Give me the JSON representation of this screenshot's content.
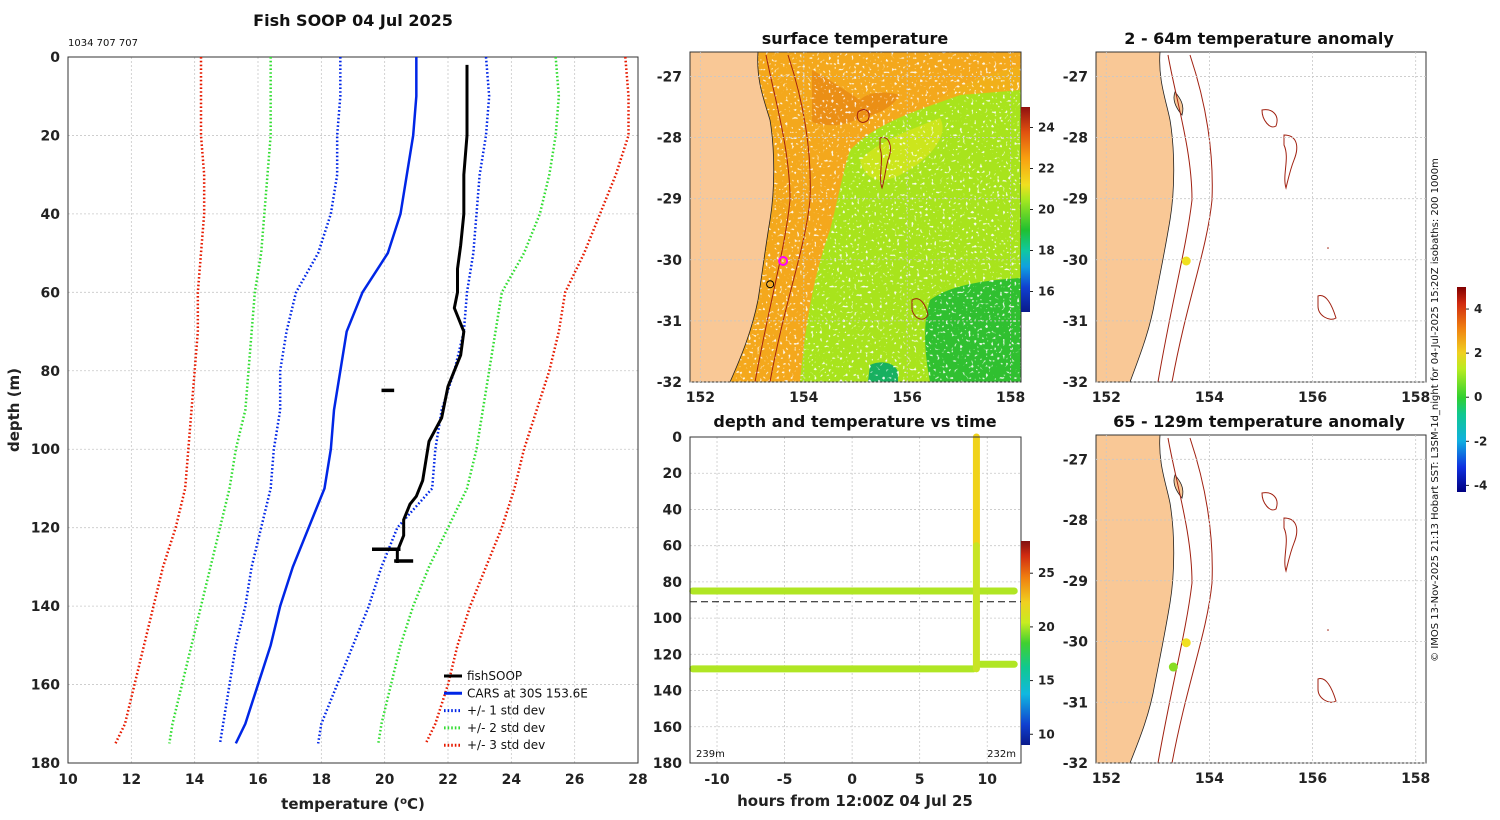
{
  "colors": {
    "fishsoop": "#000000",
    "cars": "#0026e6",
    "std1": "#0026e6",
    "std2": "#33dd33",
    "std3": "#e61a00",
    "land": "#f9c896",
    "isobath": "#a02010",
    "magenta": "#ff00ff",
    "yellow_dot": "#f0e020",
    "green_dot": "#88dd22"
  },
  "chart_data": [
    {
      "id": "profile",
      "type": "line",
      "title": "Fish SOOP 04 Jul 2025",
      "subtitle": "1034 707 707",
      "xlabel": "temperature (",
      "xlabel_unit": "o",
      "xlabel_end": "C)",
      "ylabel": "depth (m)",
      "xlim": [
        10,
        28
      ],
      "ylim": [
        180,
        0
      ],
      "xticks": [
        "10",
        "12",
        "14",
        "16",
        "18",
        "20",
        "22",
        "24",
        "26",
        "28"
      ],
      "yticks": [
        "0",
        "20",
        "40",
        "60",
        "80",
        "100",
        "120",
        "140",
        "160",
        "180"
      ],
      "depth": [
        0,
        10,
        20,
        30,
        40,
        50,
        60,
        70,
        80,
        90,
        100,
        110,
        120,
        130,
        140,
        150,
        160,
        170,
        175
      ],
      "series": [
        {
          "name": "CARS at 30S 153.6E",
          "key": "cars",
          "style": "solid",
          "x": [
            21.0,
            21.0,
            20.9,
            20.7,
            20.5,
            20.1,
            19.3,
            18.8,
            18.6,
            18.4,
            18.3,
            18.1,
            17.6,
            17.1,
            16.7,
            16.4,
            16.0,
            15.6,
            15.3
          ]
        },
        {
          "name": "+/- 1 std dev",
          "key": "std1",
          "style": "dotted",
          "x": [
            23.2,
            23.3,
            23.2,
            23.0,
            22.9,
            22.8,
            22.6,
            22.5,
            22.2,
            21.8,
            21.6,
            21.5,
            20.4,
            19.9,
            19.5,
            19.0,
            18.5,
            18.0,
            17.9
          ]
        },
        {
          "name": "+/- 1 std dev (lower)",
          "key": "std1",
          "style": "dotted",
          "x": [
            18.6,
            18.6,
            18.5,
            18.5,
            18.3,
            17.9,
            17.2,
            16.9,
            16.7,
            16.7,
            16.5,
            16.4,
            16.1,
            15.8,
            15.6,
            15.3,
            15.1,
            14.9,
            14.8
          ]
        },
        {
          "name": "+/- 2 std dev",
          "key": "std2",
          "style": "dotted",
          "x": [
            25.4,
            25.5,
            25.4,
            25.2,
            24.9,
            24.4,
            23.7,
            23.5,
            23.3,
            23.1,
            22.9,
            22.6,
            22.0,
            21.4,
            20.9,
            20.5,
            20.2,
            19.9,
            19.8
          ]
        },
        {
          "name": "+/- 2 std dev (lower)",
          "key": "std2",
          "style": "dotted",
          "x": [
            16.4,
            16.4,
            16.4,
            16.3,
            16.2,
            16.1,
            15.9,
            15.8,
            15.7,
            15.6,
            15.3,
            15.1,
            14.8,
            14.5,
            14.2,
            13.9,
            13.6,
            13.3,
            13.2
          ]
        },
        {
          "name": "+/- 3 std dev",
          "key": "std3",
          "style": "dotted",
          "x": [
            27.6,
            27.7,
            27.7,
            27.3,
            26.8,
            26.3,
            25.7,
            25.5,
            25.2,
            24.8,
            24.4,
            24.1,
            23.7,
            23.2,
            22.7,
            22.3,
            22.0,
            21.6,
            21.3
          ]
        },
        {
          "name": "+/- 3 std dev (lower)",
          "key": "std3",
          "style": "dotted",
          "x": [
            14.2,
            14.2,
            14.2,
            14.3,
            14.3,
            14.2,
            14.1,
            14.1,
            14.0,
            13.9,
            13.8,
            13.7,
            13.4,
            13.0,
            12.7,
            12.4,
            12.1,
            11.8,
            11.5
          ]
        }
      ],
      "fishsoop": {
        "name": "fishSOOP",
        "t": [
          22.6,
          22.6,
          22.6,
          22.5,
          22.5,
          22.4,
          22.3,
          22.3,
          22.2,
          22.5,
          22.4,
          22.0,
          21.8,
          21.4,
          21.3,
          21.2,
          21.0,
          20.8,
          20.6,
          20.6,
          20.4,
          20.4
        ],
        "z": [
          2,
          10,
          20,
          30,
          40,
          48,
          54,
          60,
          64,
          70,
          76,
          84,
          92,
          98,
          103,
          108,
          112,
          114,
          118,
          122,
          126,
          129
        ],
        "spikes": [
          {
            "z": 85,
            "t0": 19.9,
            "t1": 20.3
          },
          {
            "z": 125.5,
            "t0": 19.6,
            "t1": 20.5
          },
          {
            "z": 128.5,
            "t0": 20.3,
            "t1": 20.9
          }
        ]
      },
      "legend": [
        "fishSOOP",
        "CARS at 30S 153.6E",
        "+/- 1 std dev",
        "+/- 2 std dev",
        "+/- 3 std dev"
      ]
    },
    {
      "id": "sst_map",
      "type": "heatmap",
      "title": "surface temperature",
      "xlim": [
        151.8,
        158.2
      ],
      "ylim": [
        -32,
        -26.6
      ],
      "xticks": [
        "152",
        "154",
        "156",
        "158"
      ],
      "yticks": [
        "-27",
        "-28",
        "-29",
        "-30",
        "-31",
        "-32"
      ],
      "colorbar": {
        "range": [
          15,
          25
        ],
        "ticks": [
          "16",
          "18",
          "20",
          "22",
          "24"
        ]
      },
      "ship_position": {
        "lon": 153.6,
        "lat": -30.02
      },
      "other_position": {
        "lon": 153.35,
        "lat": -30.4
      }
    },
    {
      "id": "time_plot",
      "type": "scatter",
      "title": "depth and temperature vs time",
      "xlabel": "hours from 12:00Z 04 Jul 25",
      "xlim": [
        -12,
        12.5
      ],
      "ylim": [
        180,
        0
      ],
      "xticks": [
        "-10",
        "-5",
        "0",
        "5",
        "10"
      ],
      "yticks": [
        "0",
        "20",
        "40",
        "60",
        "80",
        "100",
        "120",
        "140",
        "160",
        "180"
      ],
      "dashed_depth": 91,
      "left_label": "239m",
      "right_label": "232m",
      "colorbar": {
        "range": [
          9,
          28
        ],
        "ticks": [
          "10",
          "15",
          "20",
          "25"
        ]
      },
      "tracks": [
        {
          "t0": -11.8,
          "t1": 12.0,
          "z": 85,
          "temp": 20.2
        },
        {
          "t0": -11.8,
          "t1": 9.0,
          "z": 128,
          "temp": 20.6
        },
        {
          "t0": 9.5,
          "t1": 12.0,
          "z": 125.5,
          "temp": 20.6
        }
      ],
      "cast": {
        "t": 9.2,
        "z0": 0,
        "z1": 128
      }
    },
    {
      "id": "anom_shallow",
      "type": "heatmap",
      "title": "2 - 64m temperature anomaly",
      "xlim": [
        151.8,
        158.2
      ],
      "ylim": [
        -32,
        -26.6
      ],
      "xticks": [
        "152",
        "154",
        "156",
        "158"
      ],
      "yticks": [
        "-27",
        "-28",
        "-29",
        "-30",
        "-31",
        "-32"
      ],
      "points": [
        {
          "lon": 153.55,
          "lat": -30.02,
          "anom": 1.9
        }
      ]
    },
    {
      "id": "anom_deep",
      "type": "heatmap",
      "title": "65 - 129m temperature anomaly",
      "xlim": [
        151.8,
        158.2
      ],
      "ylim": [
        -32,
        -26.6
      ],
      "xticks": [
        "152",
        "154",
        "156",
        "158"
      ],
      "yticks": [
        "-27",
        "-28",
        "-29",
        "-30",
        "-31",
        "-32"
      ],
      "points": [
        {
          "lon": 153.55,
          "lat": -30.02,
          "anom": 1.9
        },
        {
          "lon": 153.3,
          "lat": -30.42,
          "anom": 0.4
        }
      ],
      "colorbar": {
        "range": [
          -4.3,
          5
        ],
        "ticks": [
          "-4",
          "-2",
          "0",
          "2",
          "4"
        ]
      }
    }
  ],
  "side_text": "© IMOS 13-Nov-2025 21:13 Hobart SST: L3SM-1d_night for 04-Jul-2025 15:20Z isobaths: 200  1000m"
}
